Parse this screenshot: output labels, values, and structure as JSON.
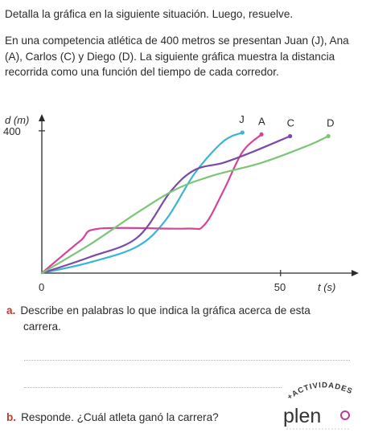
{
  "header": {
    "instruction": "Detalla la gráfica en la siguiente situación. Luego, resuelve.",
    "intro": "En una competencia atlética de 400 metros se presentan Juan (J), Ana (A), Carlos (C) y Diego (D). La siguiente gráfica muestra la distancia recorrida como una función del tiempo de cada corredor."
  },
  "chart_data": {
    "type": "line",
    "xlabel": "t (s)",
    "ylabel": "d (m)",
    "x_ticks": [
      "0",
      "50"
    ],
    "y_ticks": [
      "400"
    ],
    "series": [
      {
        "name": "J",
        "color": "#3bb4d6",
        "points": [
          [
            0,
            0
          ],
          [
            10,
            30
          ],
          [
            20,
            75
          ],
          [
            26,
            150
          ],
          [
            32,
            280
          ],
          [
            38,
            370
          ],
          [
            42,
            395
          ]
        ]
      },
      {
        "name": "A",
        "color": "#d6449a",
        "points": [
          [
            0,
            0
          ],
          [
            8,
            90
          ],
          [
            12,
            125
          ],
          [
            30,
            125
          ],
          [
            34,
            135
          ],
          [
            38,
            230
          ],
          [
            42,
            340
          ],
          [
            46,
            390
          ]
        ]
      },
      {
        "name": "C",
        "color": "#7a4aa8",
        "points": [
          [
            0,
            0
          ],
          [
            10,
            45
          ],
          [
            20,
            100
          ],
          [
            27,
            230
          ],
          [
            32,
            290
          ],
          [
            38,
            310
          ],
          [
            44,
            340
          ],
          [
            52,
            385
          ]
        ]
      },
      {
        "name": "D",
        "color": "#7cc576",
        "points": [
          [
            0,
            0
          ],
          [
            10,
            80
          ],
          [
            20,
            170
          ],
          [
            28,
            235
          ],
          [
            36,
            275
          ],
          [
            46,
            310
          ],
          [
            56,
            360
          ],
          [
            60,
            385
          ]
        ]
      }
    ],
    "xlim": [
      0,
      62
    ],
    "ylim": [
      0,
      420
    ]
  },
  "questions": {
    "a_letter": "a.",
    "a_line1": "Describe en palabras lo que indica la gráfica acerca de esta",
    "a_line2": "carrera.",
    "b_letter": "b.",
    "b_text": "Responde. ¿Cuál atleta ganó la carrera?"
  },
  "badge": {
    "top": "+ACTIVIDADES",
    "brand": "pleno"
  }
}
